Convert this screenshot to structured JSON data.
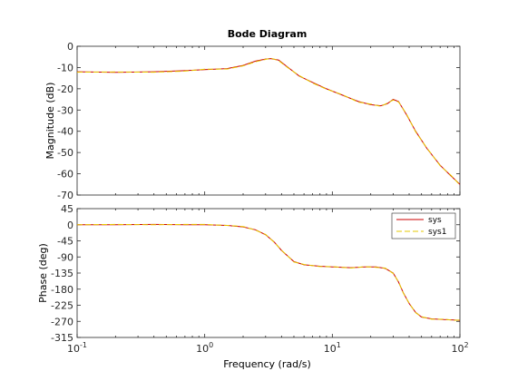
{
  "chart_data": {
    "type": "line",
    "title": "Bode Diagram",
    "xlabel": "Frequency  (rad/s)",
    "xscale": "log",
    "xlim": [
      0.1,
      100
    ],
    "x_ticks": [
      {
        "value": 0.1,
        "base": "10",
        "exp": "-1"
      },
      {
        "value": 1,
        "base": "10",
        "exp": "0"
      },
      {
        "value": 10,
        "base": "10",
        "exp": "1"
      },
      {
        "value": 100,
        "base": "10",
        "exp": "2"
      }
    ],
    "grid": false,
    "legend": {
      "location": "top-right",
      "panel": "phase"
    },
    "series_styles": [
      {
        "name": "sys",
        "color": "#cc0000",
        "dash": "solid"
      },
      {
        "name": "sys1",
        "color": "#e6c800",
        "dash": "dashed"
      }
    ],
    "panels": [
      {
        "name": "magnitude",
        "ylabel": "Magnitude (dB)",
        "ylim": [
          -70,
          0
        ],
        "yticks": [
          0,
          -10,
          -20,
          -30,
          -40,
          -50,
          -60,
          -70
        ],
        "x": [
          0.1,
          0.2,
          0.4,
          0.7,
          1.0,
          1.5,
          2.0,
          2.5,
          3.0,
          3.3,
          3.8,
          4.5,
          5.5,
          7.0,
          9.0,
          12.0,
          16.0,
          20.0,
          24.0,
          27.0,
          30.0,
          33.0,
          38.0,
          45.0,
          55.0,
          70.0,
          85.0,
          100.0
        ],
        "series": [
          {
            "name": "sys",
            "values": [
              -12,
              -12.3,
              -12,
              -11.5,
              -11,
              -10.5,
              -9,
              -7,
              -6,
              -5.8,
              -6.5,
              -10,
              -14,
              -17,
              -20,
              -23,
              -26,
              -27.5,
              -28,
              -27,
              -25,
              -26,
              -32,
              -40,
              -48,
              -56,
              -61,
              -65
            ]
          },
          {
            "name": "sys1",
            "values": [
              -12.2,
              -12.1,
              -12.2,
              -11.7,
              -10.8,
              -10.7,
              -9.2,
              -7.3,
              -6.2,
              -5.6,
              -6.8,
              -10.2,
              -13.8,
              -17.3,
              -20.2,
              -22.8,
              -26.3,
              -27.2,
              -28.3,
              -26.7,
              -25.3,
              -26.2,
              -31.7,
              -40.3,
              -47.8,
              -56.2,
              -60.7,
              -65.3
            ]
          }
        ]
      },
      {
        "name": "phase",
        "ylabel": "Phase (deg)",
        "ylim": [
          -315,
          45
        ],
        "yticks": [
          45,
          0,
          -45,
          -90,
          -135,
          -180,
          -225,
          -270,
          -315
        ],
        "x": [
          0.1,
          0.2,
          0.4,
          0.7,
          1.0,
          1.5,
          2.0,
          2.5,
          3.0,
          3.5,
          4.0,
          5.0,
          6.0,
          8.0,
          10.0,
          14.0,
          18.0,
          22.0,
          26.0,
          30.0,
          33.0,
          36.0,
          40.0,
          45.0,
          50.0,
          60.0,
          75.0,
          90.0,
          100.0
        ],
        "series": [
          {
            "name": "sys",
            "values": [
              0,
              0,
              1,
              0,
              0,
              -2,
              -6,
              -14,
              -28,
              -48,
              -72,
              -103,
              -112,
              -116,
              -118,
              -120,
              -118,
              -118,
              -122,
              -135,
              -160,
              -190,
              -220,
              -245,
              -258,
              -263,
              -265,
              -266,
              -267
            ]
          },
          {
            "name": "sys1",
            "values": [
              0,
              1,
              0,
              1,
              1,
              -2,
              -5,
              -15,
              -27,
              -49,
              -71,
              -104,
              -111,
              -117,
              -117,
              -121,
              -117,
              -119,
              -121,
              -136,
              -159,
              -191,
              -219,
              -246,
              -257,
              -264,
              -264,
              -267,
              -266
            ]
          }
        ]
      }
    ]
  }
}
